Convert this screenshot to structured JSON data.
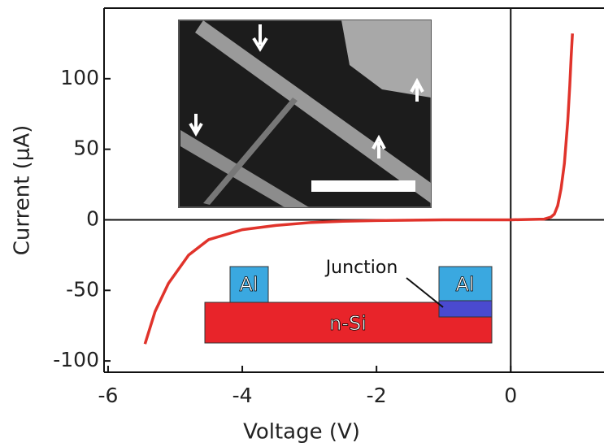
{
  "chart_data": {
    "type": "line",
    "x_label": "Voltage (V)",
    "y_label": "Current (μA)",
    "x": [
      -5.45,
      -5.3,
      -5.1,
      -4.8,
      -4.5,
      -4.0,
      -3.5,
      -3.0,
      -2.5,
      -2.0,
      -1.0,
      0,
      0.5,
      0.6,
      0.65,
      0.7,
      0.75,
      0.8,
      0.85,
      0.88,
      0.9,
      0.92
    ],
    "series": [
      {
        "color": "#e0332b",
        "values": [
          -88,
          -65,
          -45,
          -25,
          -14,
          -7,
          -4,
          -2,
          -1,
          -0.5,
          0,
          0,
          0.5,
          2,
          4,
          10,
          22,
          40,
          70,
          95,
          115,
          132
        ]
      }
    ],
    "xlim": [
      -6.06,
      1.39
    ],
    "ylim": [
      -108,
      150
    ],
    "xticks": [
      -6,
      -4,
      -2,
      0
    ],
    "yticks": [
      -100,
      -50,
      0,
      50,
      100
    ],
    "inset_labels": {
      "al_left": "Al",
      "al_right": "Al",
      "junction": "Junction",
      "substrate": "n-Si"
    }
  }
}
